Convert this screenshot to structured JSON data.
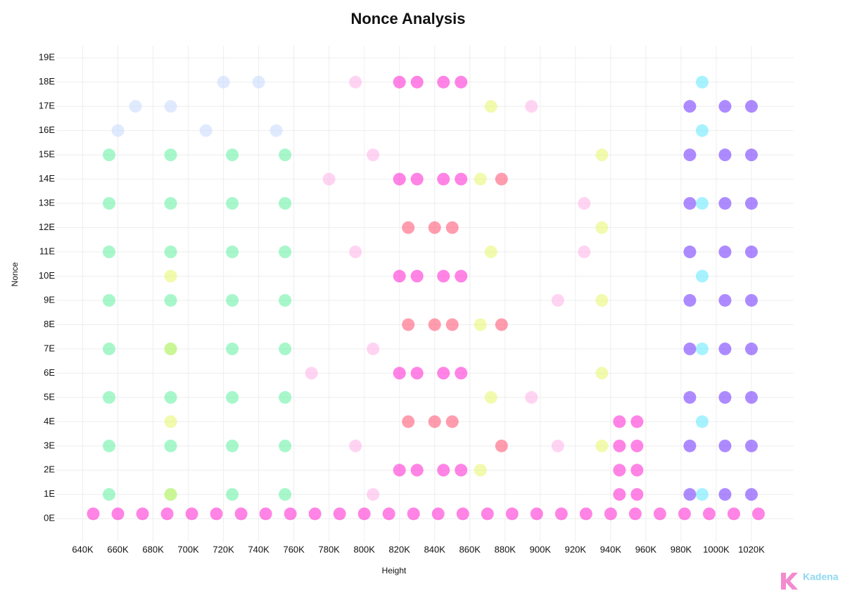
{
  "chart_data": {
    "type": "scatter",
    "title": "Nonce Analysis",
    "x_label": "Height",
    "y_label": "Nonce",
    "xlim": [
      625,
      1044
    ],
    "ylim": [
      -0.95,
      19.5
    ],
    "grid": true,
    "xticks": [
      {
        "value": 640,
        "label": "640K"
      },
      {
        "value": 660,
        "label": "660K"
      },
      {
        "value": 680,
        "label": "680K"
      },
      {
        "value": 700,
        "label": "700K"
      },
      {
        "value": 720,
        "label": "720K"
      },
      {
        "value": 740,
        "label": "740K"
      },
      {
        "value": 760,
        "label": "760K"
      },
      {
        "value": 780,
        "label": "780K"
      },
      {
        "value": 800,
        "label": "800K"
      },
      {
        "value": 820,
        "label": "820K"
      },
      {
        "value": 840,
        "label": "840K"
      },
      {
        "value": 860,
        "label": "860K"
      },
      {
        "value": 880,
        "label": "880K"
      },
      {
        "value": 900,
        "label": "900K"
      },
      {
        "value": 920,
        "label": "920K"
      },
      {
        "value": 940,
        "label": "940K"
      },
      {
        "value": 960,
        "label": "960K"
      },
      {
        "value": 980,
        "label": "980K"
      },
      {
        "value": 1000,
        "label": "1000K"
      },
      {
        "value": 1020,
        "label": "1020K"
      }
    ],
    "yticks": [
      {
        "value": 0,
        "label": "0E"
      },
      {
        "value": 1,
        "label": "1E"
      },
      {
        "value": 2,
        "label": "2E"
      },
      {
        "value": 3,
        "label": "3E"
      },
      {
        "value": 4,
        "label": "4E"
      },
      {
        "value": 5,
        "label": "5E"
      },
      {
        "value": 6,
        "label": "6E"
      },
      {
        "value": 7,
        "label": "7E"
      },
      {
        "value": 8,
        "label": "8E"
      },
      {
        "value": 9,
        "label": "9E"
      },
      {
        "value": 10,
        "label": "10E"
      },
      {
        "value": 11,
        "label": "11E"
      },
      {
        "value": 12,
        "label": "12E"
      },
      {
        "value": 13,
        "label": "13E"
      },
      {
        "value": 14,
        "label": "14E"
      },
      {
        "value": 15,
        "label": "15E"
      },
      {
        "value": 16,
        "label": "16E"
      },
      {
        "value": 17,
        "label": "17E"
      },
      {
        "value": 18,
        "label": "18E"
      },
      {
        "value": 19,
        "label": "19E"
      }
    ],
    "series": [
      {
        "color": "#c7d8ff",
        "x": [
          660,
          690,
          720,
          750,
          670,
          710,
          740
        ],
        "y": [
          16,
          17,
          18,
          16,
          17,
          16,
          18
        ]
      },
      {
        "color": "#ffb0e8",
        "x": [
          795,
          805,
          795,
          805,
          795,
          805,
          895,
          910,
          925,
          895,
          910,
          925,
          770,
          780
        ],
        "y": [
          3,
          7,
          11,
          15,
          18,
          1,
          5,
          9,
          13,
          17,
          3,
          11,
          6,
          14
        ]
      },
      {
        "color": "#5ef0a0",
        "x": [
          655,
          690,
          725,
          755,
          655,
          690,
          725,
          755,
          655,
          690,
          725,
          755,
          655,
          690,
          725,
          755,
          655,
          690,
          725,
          755,
          655,
          690,
          725,
          755,
          655,
          690,
          725,
          755,
          655,
          690,
          725,
          755
        ],
        "y": [
          1,
          1,
          1,
          1,
          3,
          3,
          3,
          3,
          5,
          5,
          5,
          5,
          7,
          7,
          7,
          7,
          9,
          9,
          9,
          9,
          11,
          11,
          11,
          11,
          13,
          13,
          13,
          13,
          15,
          15,
          15,
          15
        ]
      },
      {
        "color": "#e8f56a",
        "x": [
          866,
          872,
          866,
          872,
          866,
          872,
          935,
          935,
          935,
          935,
          935,
          690,
          690,
          690,
          690
        ],
        "y": [
          2,
          5,
          8,
          11,
          14,
          17,
          3,
          6,
          9,
          12,
          15,
          1,
          4,
          7,
          10
        ]
      },
      {
        "color": "#ff4d6d",
        "x": [
          825,
          840,
          850,
          825,
          840,
          850,
          825,
          840,
          850,
          878,
          878,
          878
        ],
        "y": [
          4,
          4,
          4,
          8,
          8,
          8,
          12,
          12,
          12,
          3,
          8,
          14
        ]
      },
      {
        "color": "#ff1fd0",
        "x": [
          646,
          660,
          674,
          688,
          702,
          716,
          730,
          744,
          758,
          772,
          786,
          800,
          814,
          828,
          842,
          856,
          870,
          884,
          898,
          912,
          926,
          940,
          954,
          968,
          982,
          996,
          1010,
          1024,
          820,
          820,
          820,
          820,
          820,
          830,
          830,
          830,
          830,
          830,
          845,
          845,
          845,
          845,
          845,
          855,
          855,
          855,
          855,
          855,
          945,
          945,
          945,
          945,
          955,
          955,
          955,
          955
        ],
        "y": [
          0.2,
          0.2,
          0.2,
          0.2,
          0.2,
          0.2,
          0.2,
          0.2,
          0.2,
          0.2,
          0.2,
          0.2,
          0.2,
          0.2,
          0.2,
          0.2,
          0.2,
          0.2,
          0.2,
          0.2,
          0.2,
          0.2,
          0.2,
          0.2,
          0.2,
          0.2,
          0.2,
          0.2,
          2,
          6,
          10,
          14,
          18,
          2,
          6,
          10,
          14,
          18,
          2,
          6,
          10,
          14,
          18,
          2,
          6,
          10,
          14,
          18,
          1,
          2,
          3,
          4,
          1,
          2,
          3,
          4
        ]
      },
      {
        "color": "#6a2cff",
        "x": [
          985,
          1005,
          1020,
          985,
          1005,
          1020,
          985,
          1005,
          1020,
          985,
          1005,
          1020,
          985,
          1005,
          1020,
          985,
          1005,
          1020,
          985,
          1005,
          1020,
          985,
          1005,
          1020,
          985,
          1005,
          1020
        ],
        "y": [
          1,
          1,
          1,
          3,
          3,
          3,
          5,
          5,
          5,
          7,
          7,
          7,
          9,
          9,
          9,
          11,
          11,
          11,
          13,
          13,
          13,
          15,
          15,
          15,
          17,
          17,
          17
        ]
      },
      {
        "color": "#5fe8ff",
        "x": [
          992,
          992,
          992,
          992,
          992,
          992,
          992
        ],
        "y": [
          1,
          4,
          7,
          10,
          13,
          16,
          18
        ]
      }
    ]
  },
  "brand": "Kadena"
}
